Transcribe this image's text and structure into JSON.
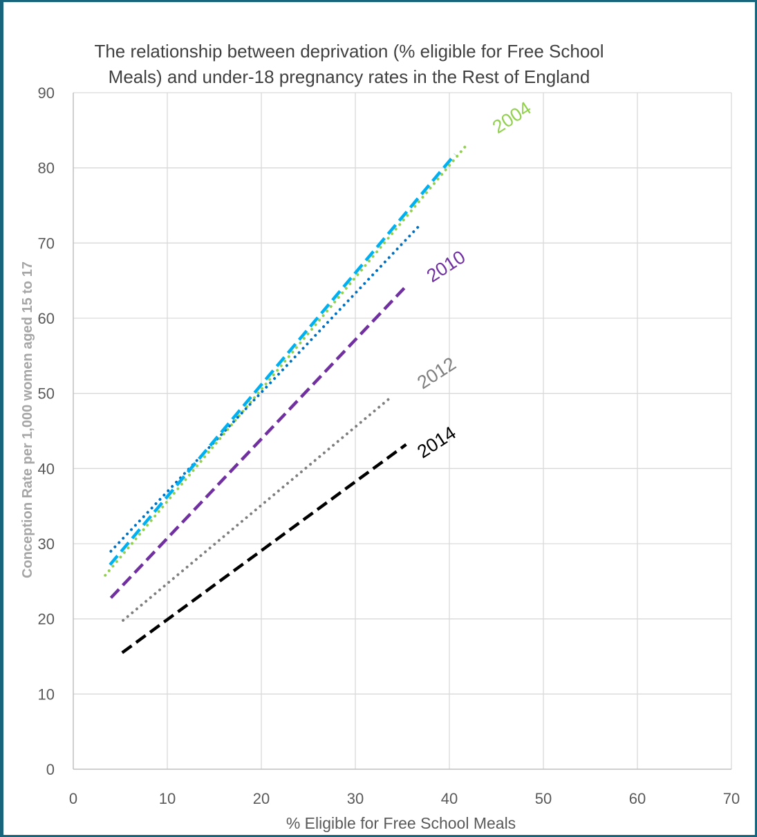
{
  "chart_data": {
    "type": "line",
    "title_lines": [
      "The relationship between deprivation (% eligible for Free School",
      "Meals) and under-18 pregnancy rates in the Rest of England"
    ],
    "xlabel": "% Eligible for Free School Meals",
    "ylabel": "Conception Rate per 1,000 women aged 15 to 17",
    "xlim": [
      0,
      70
    ],
    "ylim": [
      0,
      90
    ],
    "xticks": [
      0,
      10,
      20,
      30,
      40,
      50,
      60,
      70
    ],
    "yticks": [
      0,
      10,
      20,
      30,
      40,
      50,
      60,
      70,
      80,
      90
    ],
    "grid": true,
    "series": [
      {
        "x": [
          3.4,
          42.0
        ],
        "y": [
          25.8,
          83.3
        ],
        "color": "#92d050",
        "dash": "dotted"
      },
      {
        "x": [
          4.0,
          36.8
        ],
        "y": [
          29.0,
          72.3
        ],
        "color": "#0070c0",
        "dash": "dotted"
      },
      {
        "x": [
          3.9,
          40.6
        ],
        "y": [
          27.2,
          81.8
        ],
        "color": "#00b0f0",
        "dash": "dashed"
      },
      {
        "x": [
          4.0,
          35.2
        ],
        "y": [
          22.8,
          64.0
        ],
        "color": "#7030a0",
        "dash": "dashed"
      },
      {
        "x": [
          5.3,
          33.8
        ],
        "y": [
          19.8,
          49.5
        ],
        "color": "#7f7f7f",
        "dash": "dotted"
      },
      {
        "x": [
          5.2,
          35.4
        ],
        "y": [
          15.5,
          43.2
        ],
        "color": "#000000",
        "dash": "dashed"
      }
    ],
    "annotations": [
      {
        "text": "2004",
        "color": "#92d050",
        "x": 47.0,
        "y": 86.0
      },
      {
        "text": "2010",
        "color": "#7030a0",
        "x": 40.0,
        "y": 66.2
      },
      {
        "text": "2012",
        "color": "#7f7f7f",
        "x": 39.0,
        "y": 52.0
      },
      {
        "text": "2014",
        "color": "#000000",
        "x": 39.0,
        "y": 42.8
      }
    ]
  }
}
